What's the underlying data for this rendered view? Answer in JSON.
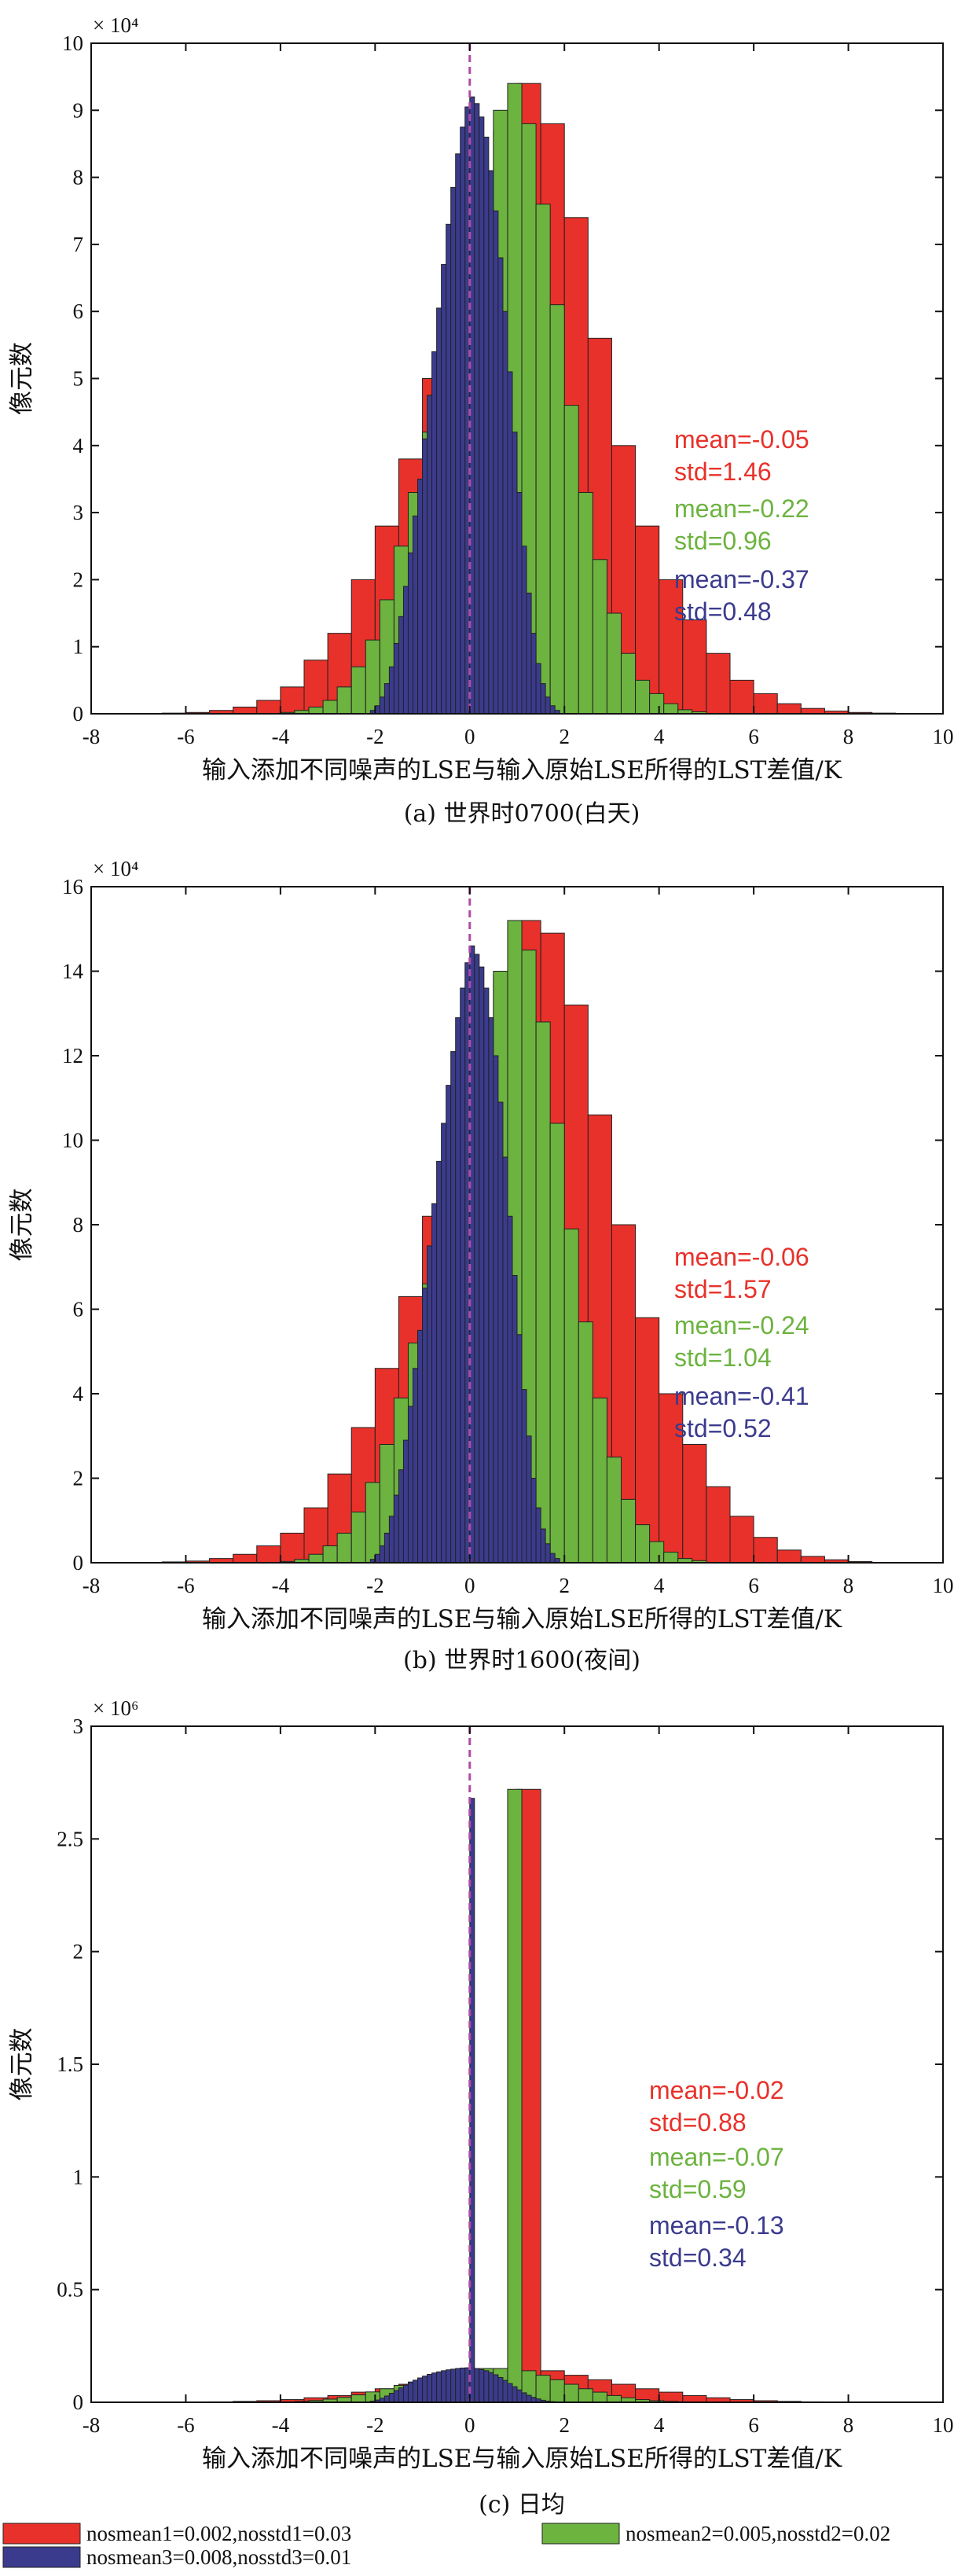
{
  "colors": {
    "series1": "#e8312a",
    "series2": "#6cb33f",
    "series3": "#3b3b8e",
    "zero_line": "#b04aa6"
  },
  "legend": [
    {
      "label": "nosmean1=0.002,nosstd1=0.03",
      "color": "#e8312a"
    },
    {
      "label": "nosmean2=0.005,nosstd2=0.02",
      "color": "#6cb33f"
    },
    {
      "label": "nosmean3=0.008,nosstd3=0.01",
      "color": "#3b3b8e"
    }
  ],
  "chart_data": [
    {
      "type": "bar",
      "caption": "(a) 世界时0700(白天)",
      "xlabel": "输入添加不同噪声的LSE与输入原始LSE所得的LST差值/K",
      "ylabel": "像元数",
      "scale_label": "× 10⁴",
      "xlim": [
        -8,
        10
      ],
      "xticks": [
        -8,
        -6,
        -4,
        -2,
        0,
        2,
        4,
        6,
        8,
        10
      ],
      "ylim": [
        0,
        10
      ],
      "yticks": [
        0,
        1,
        2,
        3,
        4,
        5,
        6,
        7,
        8,
        9,
        10
      ],
      "zero_line_x": 0,
      "series": [
        {
          "bin_width": 0.5,
          "bin_start": -6.5,
          "values": [
            0.01,
            0.02,
            0.05,
            0.1,
            0.2,
            0.4,
            0.8,
            1.2,
            2.0,
            2.8,
            3.8,
            5.0,
            6.3,
            7.6,
            8.7,
            9.4,
            8.8,
            7.4,
            5.6,
            4.0,
            2.8,
            2.0,
            1.4,
            0.9,
            0.5,
            0.3,
            0.15,
            0.08,
            0.04,
            0.02,
            0.01
          ]
        },
        {
          "bin_width": 0.3,
          "bin_start": -4.0,
          "values": [
            0.02,
            0.05,
            0.1,
            0.2,
            0.4,
            0.7,
            1.1,
            1.7,
            2.5,
            3.3,
            4.2,
            5.2,
            6.2,
            7.0,
            8.0,
            9.0,
            9.4,
            8.8,
            7.6,
            6.1,
            4.6,
            3.3,
            2.3,
            1.5,
            0.9,
            0.5,
            0.3,
            0.15,
            0.06,
            0.03
          ]
        },
        {
          "bin_width": 0.1,
          "bin_start": -2.1,
          "values": [
            0.05,
            0.12,
            0.25,
            0.45,
            0.7,
            1.05,
            1.45,
            1.9,
            2.4,
            2.95,
            3.5,
            4.1,
            4.75,
            5.4,
            6.05,
            6.7,
            7.3,
            7.85,
            8.35,
            8.75,
            9.05,
            9.2,
            9.1,
            8.9,
            8.6,
            8.1,
            7.5,
            6.8,
            6.0,
            5.1,
            4.2,
            3.3,
            2.5,
            1.8,
            1.2,
            0.75,
            0.45,
            0.25,
            0.12,
            0.05
          ]
        }
      ],
      "annotations": [
        {
          "mean_text": "mean=-0.05",
          "std_text": "std=1.46",
          "color": "#e8312a"
        },
        {
          "mean_text": "mean=-0.22",
          "std_text": "std=0.96",
          "color": "#6cb33f"
        },
        {
          "mean_text": "mean=-0.37",
          "std_text": "std=0.48",
          "color": "#3b3b8e"
        }
      ]
    },
    {
      "type": "bar",
      "caption": "(b) 世界时1600(夜间)",
      "xlabel": "输入添加不同噪声的LSE与输入原始LSE所得的LST差值/K",
      "ylabel": "像元数",
      "scale_label": "× 10⁴",
      "xlim": [
        -8,
        10
      ],
      "xticks": [
        -8,
        -6,
        -4,
        -2,
        0,
        2,
        4,
        6,
        8,
        10
      ],
      "ylim": [
        0,
        16
      ],
      "yticks": [
        0,
        2,
        4,
        6,
        8,
        10,
        12,
        14,
        16
      ],
      "zero_line_x": 0,
      "series": [
        {
          "bin_width": 0.5,
          "bin_start": -6.5,
          "values": [
            0.02,
            0.04,
            0.1,
            0.2,
            0.4,
            0.7,
            1.3,
            2.1,
            3.2,
            4.6,
            6.3,
            8.2,
            10.2,
            12.2,
            13.9,
            15.2,
            14.9,
            13.2,
            10.6,
            8.0,
            5.8,
            4.0,
            2.8,
            1.8,
            1.1,
            0.6,
            0.3,
            0.15,
            0.07,
            0.03,
            0.01
          ]
        },
        {
          "bin_width": 0.3,
          "bin_start": -4.0,
          "values": [
            0.03,
            0.08,
            0.2,
            0.4,
            0.7,
            1.2,
            1.9,
            2.8,
            3.9,
            5.2,
            6.6,
            8.1,
            9.6,
            11.0,
            12.5,
            14.0,
            15.2,
            14.5,
            12.8,
            10.4,
            7.9,
            5.7,
            3.9,
            2.5,
            1.5,
            0.9,
            0.5,
            0.25,
            0.1,
            0.05
          ]
        },
        {
          "bin_width": 0.1,
          "bin_start": -2.1,
          "values": [
            0.08,
            0.2,
            0.4,
            0.7,
            1.1,
            1.6,
            2.2,
            2.9,
            3.7,
            4.6,
            5.5,
            6.5,
            7.5,
            8.5,
            9.5,
            10.4,
            11.3,
            12.1,
            12.9,
            13.6,
            14.2,
            14.6,
            14.4,
            14.1,
            13.6,
            12.9,
            12.0,
            10.9,
            9.6,
            8.2,
            6.8,
            5.4,
            4.1,
            3.0,
            2.0,
            1.3,
            0.8,
            0.45,
            0.22,
            0.1
          ]
        }
      ],
      "annotations": [
        {
          "mean_text": "mean=-0.06",
          "std_text": "std=1.57",
          "color": "#e8312a"
        },
        {
          "mean_text": "mean=-0.24",
          "std_text": "std=1.04",
          "color": "#6cb33f"
        },
        {
          "mean_text": "mean=-0.41",
          "std_text": "std=0.52",
          "color": "#3b3b8e"
        }
      ]
    },
    {
      "type": "bar",
      "caption": "(c) 日均",
      "xlabel": "输入添加不同噪声的LSE与输入原始LSE所得的LST差值/K",
      "ylabel": "像元数",
      "scale_label": "× 10⁶",
      "xlim": [
        -8,
        10
      ],
      "xticks": [
        -8,
        -6,
        -4,
        -2,
        0,
        2,
        4,
        6,
        8,
        10
      ],
      "ylim": [
        0,
        3
      ],
      "yticks": [
        0,
        0.5,
        1,
        1.5,
        2,
        2.5,
        3
      ],
      "zero_line_x": 0,
      "series": [
        {
          "bin_width": 0.5,
          "bin_start": -6.5,
          "values": [
            0.0005,
            0.001,
            0.002,
            0.004,
            0.007,
            0.012,
            0.02,
            0.03,
            0.045,
            0.06,
            0.08,
            0.1,
            0.12,
            0.14,
            0.15,
            2.72,
            0.14,
            0.12,
            0.1,
            0.08,
            0.06,
            0.045,
            0.03,
            0.02,
            0.012,
            0.007,
            0.004,
            0.002,
            0.001,
            0.0005,
            0.0002
          ]
        },
        {
          "bin_width": 0.3,
          "bin_start": -4.0,
          "values": [
            0.002,
            0.004,
            0.008,
            0.014,
            0.022,
            0.033,
            0.046,
            0.06,
            0.075,
            0.09,
            0.105,
            0.12,
            0.13,
            0.14,
            0.15,
            0.15,
            2.72,
            0.14,
            0.12,
            0.1,
            0.08,
            0.06,
            0.045,
            0.03,
            0.02,
            0.012,
            0.007,
            0.004,
            0.002,
            0.001
          ]
        },
        {
          "bin_width": 0.1,
          "bin_start": -2.1,
          "values": [
            0.005,
            0.01,
            0.018,
            0.028,
            0.04,
            0.052,
            0.064,
            0.076,
            0.088,
            0.098,
            0.108,
            0.116,
            0.124,
            0.13,
            0.135,
            0.14,
            0.144,
            0.147,
            0.15,
            0.152,
            0.153,
            2.68,
            0.15,
            0.145,
            0.14,
            0.132,
            0.122,
            0.11,
            0.097,
            0.083,
            0.069,
            0.055,
            0.042,
            0.031,
            0.022,
            0.015,
            0.009,
            0.005,
            0.003,
            0.001
          ]
        }
      ],
      "annotations": [
        {
          "mean_text": "mean=-0.02",
          "std_text": "std=0.88",
          "color": "#e8312a"
        },
        {
          "mean_text": "mean=-0.07",
          "std_text": "std=0.59",
          "color": "#6cb33f"
        },
        {
          "mean_text": "mean=-0.13",
          "std_text": "std=0.34",
          "color": "#3b3b8e"
        }
      ]
    }
  ]
}
